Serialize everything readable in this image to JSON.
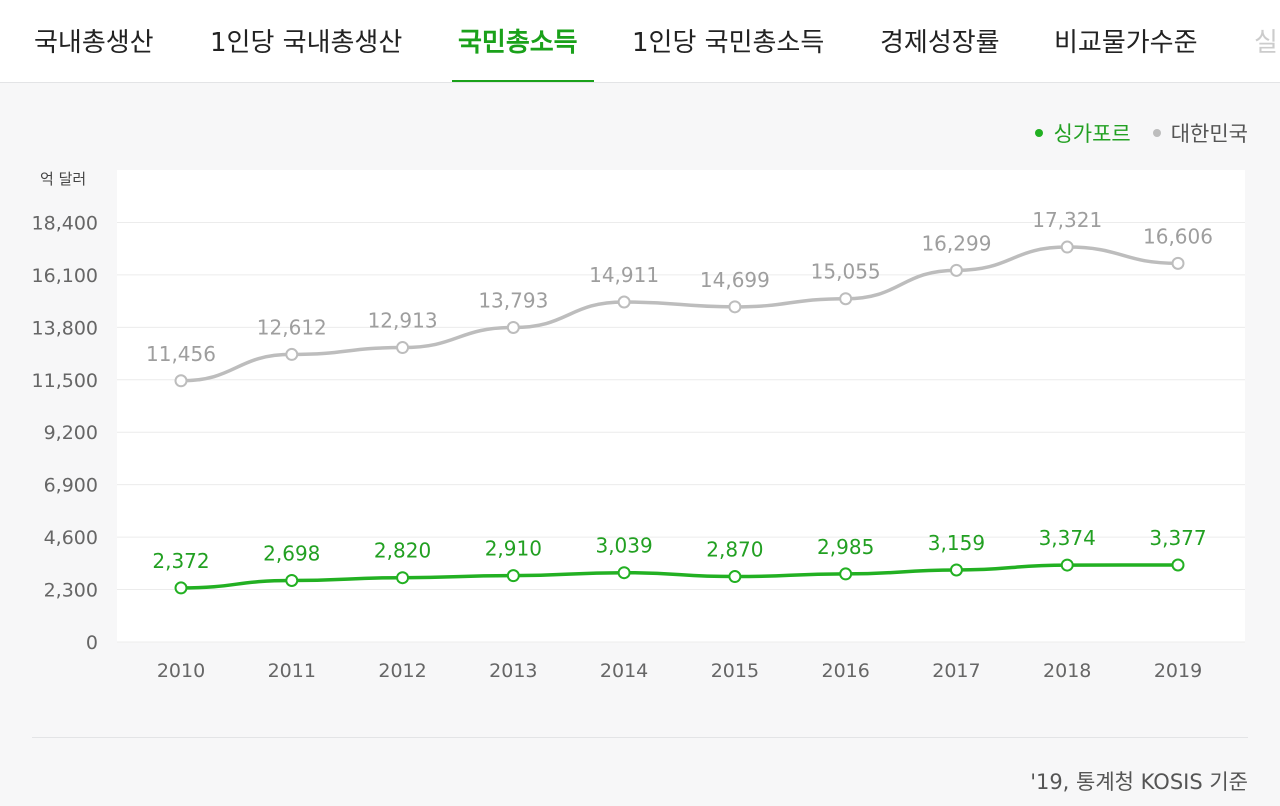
{
  "tabs": [
    {
      "label": "국내총생산",
      "active": false
    },
    {
      "label": "1인당 국내총생산",
      "active": false
    },
    {
      "label": "국민총소득",
      "active": true
    },
    {
      "label": "1인당 국민총소득",
      "active": false
    },
    {
      "label": "경제성장률",
      "active": false
    },
    {
      "label": "비교물가수준",
      "active": false
    },
    {
      "label": "실",
      "active": false
    }
  ],
  "colors": {
    "accent": "#1aa11a",
    "singapore": "#22b022",
    "korea": "#bdbdbd"
  },
  "source": "'19, 통계청 KOSIS 기준",
  "chart_data": {
    "type": "line",
    "unit_label": "억 달러",
    "x": [
      "2010",
      "2011",
      "2012",
      "2013",
      "2014",
      "2015",
      "2016",
      "2017",
      "2018",
      "2019"
    ],
    "y_ticks": [
      0,
      2300,
      4600,
      6900,
      9200,
      11500,
      13800,
      16100,
      18400
    ],
    "y_tick_labels": [
      "0",
      "2,300",
      "4,600",
      "6,900",
      "9,200",
      "11,500",
      "13,800",
      "16,100",
      "18,400"
    ],
    "ylim": [
      0,
      20700
    ],
    "grid": true,
    "legend_position": "top-right",
    "series": [
      {
        "name": "싱가포르",
        "values": [
          2372,
          2698,
          2820,
          2910,
          3039,
          2870,
          2985,
          3159,
          3374,
          3377
        ],
        "labels": [
          "2,372",
          "2,698",
          "2,820",
          "2,910",
          "3,039",
          "2,870",
          "2,985",
          "3,159",
          "3,374",
          "3,377"
        ]
      },
      {
        "name": "대한민국",
        "values": [
          11456,
          12612,
          12913,
          13793,
          14911,
          14699,
          15055,
          16299,
          17321,
          16606
        ],
        "labels": [
          "11,456",
          "12,612",
          "12,913",
          "13,793",
          "14,911",
          "14,699",
          "15,055",
          "16,299",
          "17,321",
          "16,606"
        ]
      }
    ]
  }
}
